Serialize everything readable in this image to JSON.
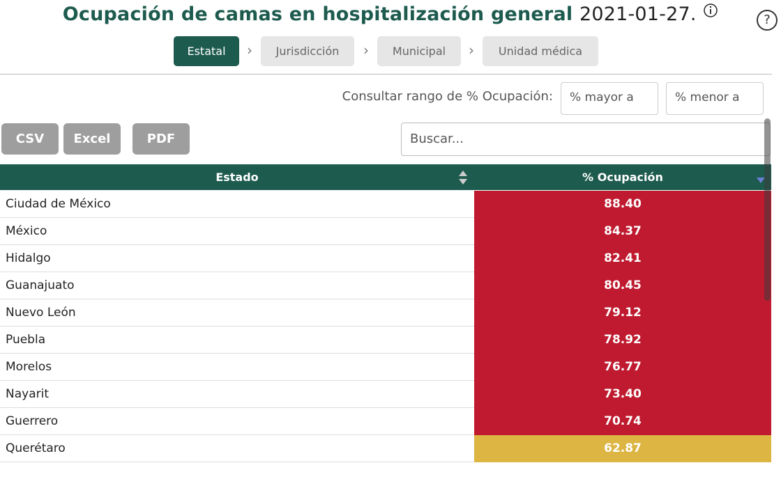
{
  "header": {
    "title": "Ocupación de camas en hospitalización general",
    "date": "2021-01-27.",
    "help": "?"
  },
  "tabs": [
    "Estatal",
    "Jurisdicción",
    "Municipal",
    "Unidad médica"
  ],
  "filter": {
    "label": "Consultar rango de % Ocupación:",
    "min_placeholder": "% mayor a",
    "max_placeholder": "% menor a"
  },
  "buttons": [
    "CSV",
    "Excel",
    "PDF"
  ],
  "search_placeholder": "Buscar...",
  "table": {
    "columns": [
      "Estado",
      "% Ocupación"
    ],
    "rows": [
      {
        "estado": "Ciudad de México",
        "ocupacion": "88.40",
        "color": "#bf1a2f"
      },
      {
        "estado": "México",
        "ocupacion": "84.37",
        "color": "#bf1a2f"
      },
      {
        "estado": "Hidalgo",
        "ocupacion": "82.41",
        "color": "#bf1a2f"
      },
      {
        "estado": "Guanajuato",
        "ocupacion": "80.45",
        "color": "#bf1a2f"
      },
      {
        "estado": "Nuevo León",
        "ocupacion": "79.12",
        "color": "#bf1a2f"
      },
      {
        "estado": "Puebla",
        "ocupacion": "78.92",
        "color": "#bf1a2f"
      },
      {
        "estado": "Morelos",
        "ocupacion": "76.77",
        "color": "#bf1a2f"
      },
      {
        "estado": "Nayarit",
        "ocupacion": "73.40",
        "color": "#bf1a2f"
      },
      {
        "estado": "Guerrero",
        "ocupacion": "70.74",
        "color": "#bf1a2f"
      },
      {
        "estado": "Querétaro",
        "ocupacion": "62.87",
        "color": "#dcb543"
      }
    ]
  }
}
